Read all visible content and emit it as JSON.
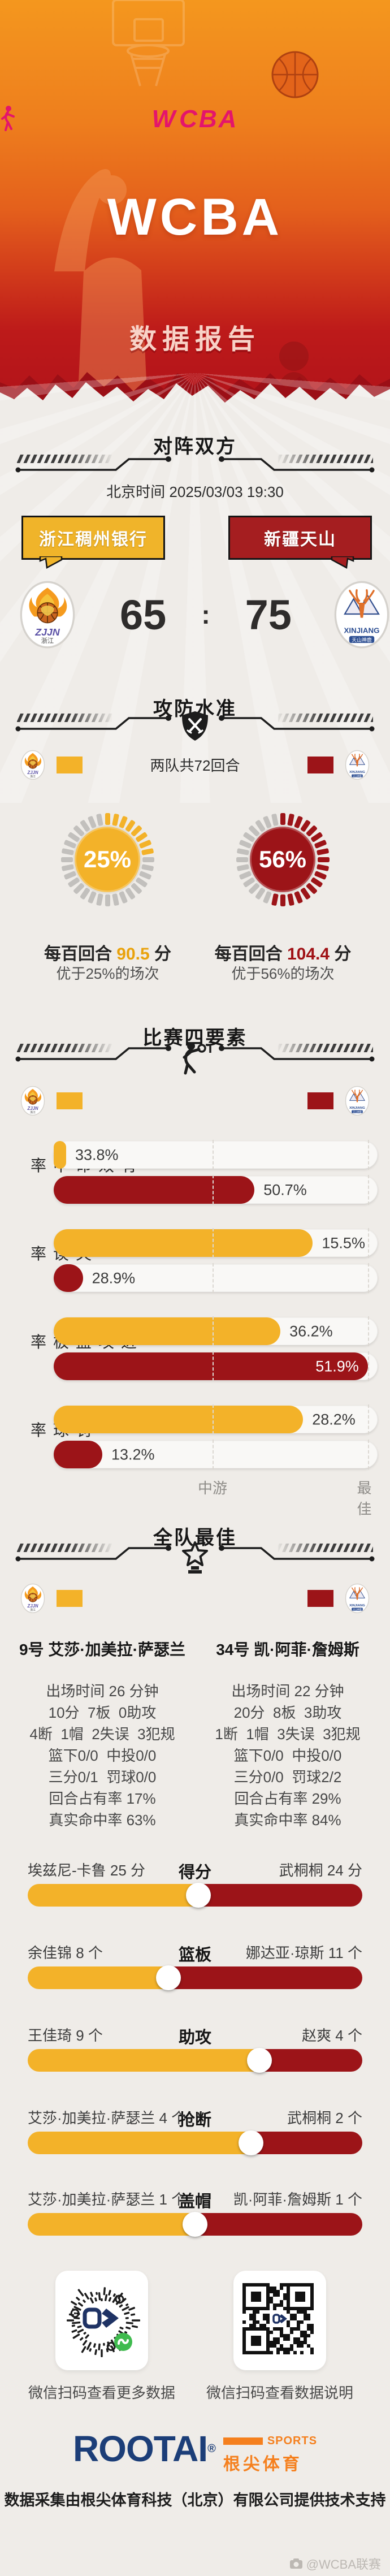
{
  "colors": {
    "yellow": "#F3B229",
    "red": "#9C1418",
    "banner_yellow": "#F0B42A",
    "banner_red": "#A51E20",
    "tick_gray": "#C2C0BD",
    "navy": "#1C3E78",
    "orange": "#F5801E",
    "pink": "#E4156B"
  },
  "hero": {
    "league_logo_left": "W",
    "league_logo_right": "CBA",
    "title": "WCBA",
    "subtitle": "数据报告"
  },
  "matchup": {
    "section_title": "对阵双方",
    "datetime": "北京时间 2025/03/03 19:30",
    "home": {
      "name": "浙江稠州银行",
      "short": "浙江",
      "logo_code": "ZJJN"
    },
    "away": {
      "name": "新疆天山",
      "logo_code": "XINJIANG"
    },
    "score": {
      "home": "65",
      "separator": ":",
      "away": "75"
    }
  },
  "ratings": {
    "section_title": "攻防水准",
    "legend_note": "两队共72回合",
    "gauges": [
      {
        "team": "home",
        "pct": 25,
        "pct_label": "25%",
        "line1_prefix": "每百回合",
        "line1_value": "90.5",
        "line1_suffix": "分",
        "line2": "优于25%的场次"
      },
      {
        "team": "away",
        "pct": 56,
        "pct_label": "56%",
        "line1_prefix": "每百回合",
        "line1_value": "104.4",
        "line1_suffix": "分",
        "line2": "优于56%的场次"
      }
    ]
  },
  "four_factors": {
    "section_title": "比赛四要素",
    "axis": {
      "mid": "中游",
      "best": "最佳",
      "mid_pos": 0.49,
      "best_pos": 0.97
    },
    "rows": [
      {
        "label": "有效命中率",
        "home": {
          "value": "33.8%",
          "rank": 0.035
        },
        "away": {
          "value": "50.7%",
          "rank": 0.62
        }
      },
      {
        "label": "失误率",
        "home": {
          "value": "15.5%",
          "rank": 0.8
        },
        "away": {
          "value": "28.9%",
          "rank": 0.09
        }
      },
      {
        "label": "进攻篮板率",
        "home": {
          "value": "36.2%",
          "rank": 0.7
        },
        "away": {
          "value": "51.9%",
          "rank": 0.97,
          "inside": true
        }
      },
      {
        "label": "罚球率",
        "home": {
          "value": "28.2%",
          "rank": 0.77
        },
        "away": {
          "value": "13.2%",
          "rank": 0.15
        }
      }
    ]
  },
  "team_best": {
    "section_title": "全队最佳",
    "players": [
      {
        "title": "9号 艾莎·加美拉·萨瑟兰",
        "lines": [
          "出场时间 26 分钟",
          "10分  7板  0助攻",
          "4断  1帽  2失误  3犯规",
          "篮下0/0  中投0/0",
          "三分0/1  罚球0/0",
          "回合占有率 17%",
          "真实命中率 63%"
        ]
      },
      {
        "title": "34号 凯·阿菲·詹姆斯",
        "lines": [
          "出场时间 22 分钟",
          "20分  8板  3助攻",
          "1断  1帽  3失误  3犯规",
          "篮下0/0  中投0/0",
          "三分0/0  罚球2/2",
          "回合占有率 29%",
          "真实命中率 84%"
        ]
      }
    ],
    "duels": [
      {
        "category": "得分",
        "home": "埃兹尼-卡鲁 25 分",
        "away": "武桐桐 24 分",
        "ratio": 0.51
      },
      {
        "category": "篮板",
        "home": "余佳锦 8 个",
        "away": "娜达亚·琼斯 11 个",
        "ratio": 0.421
      },
      {
        "category": "助攻",
        "home": "王佳琦 9 个",
        "away": "赵爽 4 个",
        "ratio": 0.692
      },
      {
        "category": "抢断",
        "home": "艾莎·加美拉·萨瑟兰 4 个",
        "away": "武桐桐 2 个",
        "ratio": 0.667
      },
      {
        "category": "盖帽",
        "home": "艾莎·加美拉·萨瑟兰 1 个",
        "away": "凯·阿菲·詹姆斯 1 个",
        "ratio": 0.5
      }
    ]
  },
  "qr": {
    "left_caption": "微信扫码查看更多数据",
    "right_caption": "微信扫码查看数据说明"
  },
  "footer": {
    "brand": "ROOTAI",
    "reg": "®",
    "sports": "SPORTS",
    "brand_cn": "根尖体育",
    "support": "数据采集由根尖体育科技（北京）有限公司提供技术支持",
    "watermark": "@WCBA联赛"
  },
  "chart_data": [
    {
      "type": "gauge",
      "title": "攻防水准",
      "note": "两队共72回合",
      "series": [
        {
          "team": "浙江稠州银行",
          "points_per_100": 90.5,
          "better_than_pct": 25
        },
        {
          "team": "新疆天山",
          "points_per_100": 104.4,
          "better_than_pct": 56
        }
      ]
    },
    {
      "type": "bar",
      "title": "比赛四要素",
      "categories": [
        "有效命中率",
        "失误率",
        "进攻篮板率",
        "罚球率"
      ],
      "axis_labels": [
        "中游",
        "最佳"
      ],
      "series": [
        {
          "name": "浙江稠州银行",
          "values": [
            "33.8%",
            "15.5%",
            "36.2%",
            "28.2%"
          ],
          "rank_fractions": [
            0.035,
            0.8,
            0.7,
            0.77
          ]
        },
        {
          "name": "新疆天山",
          "values": [
            "50.7%",
            "28.9%",
            "51.9%",
            "13.2%"
          ],
          "rank_fractions": [
            0.62,
            0.09,
            0.97,
            0.15
          ]
        }
      ]
    },
    {
      "type": "bar",
      "title": "全队最佳",
      "categories": [
        "得分",
        "篮板",
        "助攻",
        "抢断",
        "盖帽"
      ],
      "series": [
        {
          "name": "浙江稠州银行",
          "leaders": [
            "埃兹尼-卡鲁 25",
            "余佳锦 8",
            "王佳琦 9",
            "艾莎·加美拉·萨瑟兰 4",
            "艾莎·加美拉·萨瑟兰 1"
          ]
        },
        {
          "name": "新疆天山",
          "leaders": [
            "武桐桐 24",
            "娜达亚·琼斯 11",
            "赵爽 4",
            "武桐桐 2",
            "凯·阿菲·詹姆斯 1"
          ]
        }
      ],
      "score": {
        "浙江稠州银行": 65,
        "新疆天山": 75
      }
    }
  ]
}
